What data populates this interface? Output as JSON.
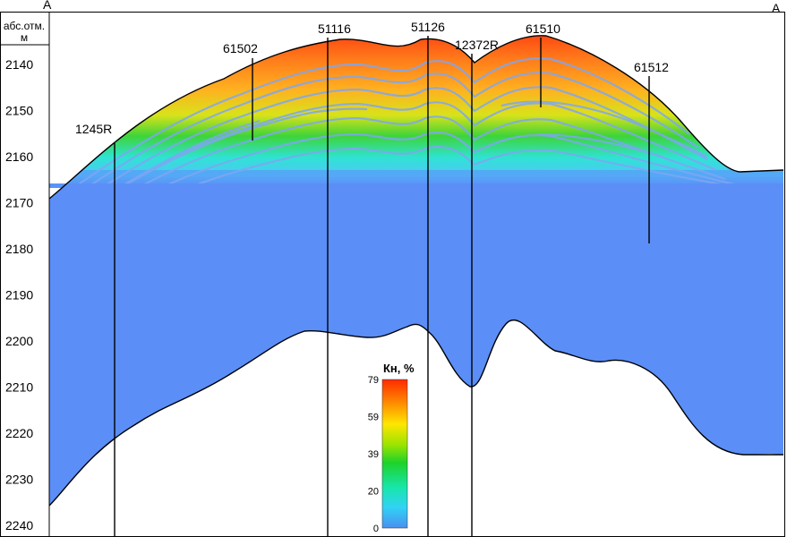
{
  "corner_labels": {
    "left": "A",
    "right": "A"
  },
  "axis": {
    "header_line1": "абс.отм.",
    "header_line2": "м",
    "ticks": [
      "2140",
      "2150",
      "2160",
      "2170",
      "2180",
      "2190",
      "2200",
      "2210",
      "2220",
      "2230",
      "2240"
    ]
  },
  "wells": [
    {
      "name": "1245R"
    },
    {
      "name": "61502"
    },
    {
      "name": "51116"
    },
    {
      "name": "51126"
    },
    {
      "name": "12372R"
    },
    {
      "name": "61510"
    },
    {
      "name": "61512"
    }
  ],
  "legend": {
    "title": "Кн, %",
    "ticks": [
      "79",
      "59",
      "39",
      "20",
      "0"
    ],
    "colors": [
      "#ff2a00",
      "#ff8c00",
      "#ffe600",
      "#9be400",
      "#1ed22a",
      "#17e6ad",
      "#31d2f5",
      "#4a8ff0"
    ]
  },
  "colors": {
    "reservoir": "#5b8ef7",
    "layer_light": "#7ea6f3"
  }
}
